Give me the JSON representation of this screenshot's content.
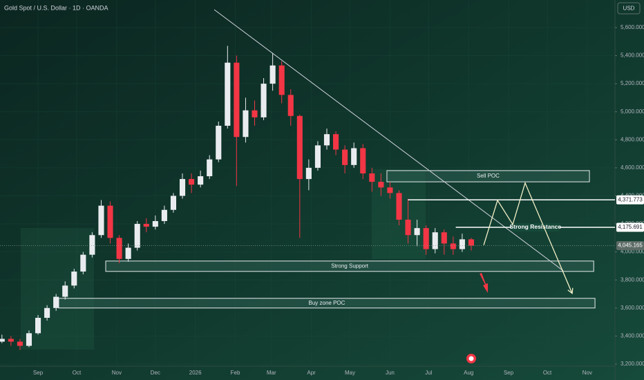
{
  "chart_data": {
    "type": "candlestick",
    "title": "Gold Spot / U.S. Dollar · 1D · OANDA",
    "currency": "USD",
    "up_color": "#e9ecef",
    "down_color": "#f23645",
    "x": [
      -28,
      -21,
      -14,
      -7,
      0,
      7,
      14,
      21,
      28,
      35,
      42,
      49,
      56,
      63,
      70,
      77,
      84,
      91,
      98,
      105,
      112,
      119,
      126,
      133,
      140,
      147,
      154,
      161,
      168,
      175,
      182,
      189,
      196,
      203,
      210,
      217,
      224,
      231,
      238,
      245,
      252,
      259,
      266,
      273,
      280,
      287,
      294,
      301,
      308,
      315,
      322,
      329,
      336
    ],
    "open": [
      3360,
      3380,
      3360,
      3330,
      3420,
      3530,
      3600,
      3680,
      3760,
      3860,
      3980,
      4120,
      4330,
      4100,
      3950,
      4030,
      4200,
      4180,
      4220,
      4300,
      4400,
      4520,
      4480,
      4540,
      4660,
      4900,
      5350,
      4820,
      5010,
      4960,
      5200,
      5330,
      5120,
      4970,
      4520,
      4600,
      4760,
      4840,
      4730,
      4620,
      4740,
      4560,
      4500,
      4460,
      4420,
      4230,
      4120,
      4170,
      4020,
      4140,
      4060,
      4020,
      4090
    ],
    "high": [
      3410,
      3400,
      3380,
      3440,
      3550,
      3620,
      3700,
      3790,
      3880,
      4000,
      4140,
      4370,
      4360,
      4120,
      4060,
      4220,
      4240,
      4260,
      4330,
      4420,
      4560,
      4560,
      4580,
      4690,
      4930,
      5470,
      5400,
      5100,
      5080,
      5240,
      5420,
      5360,
      5160,
      4980,
      4660,
      4790,
      4880,
      4860,
      4760,
      4780,
      4770,
      4600,
      4560,
      4500,
      4440,
      4380,
      4230,
      4190,
      4170,
      4160,
      4110,
      4130,
      4100
    ],
    "low": [
      3350,
      3330,
      3300,
      3320,
      3410,
      3510,
      3580,
      3660,
      3740,
      3840,
      3960,
      4100,
      4060,
      3920,
      3930,
      4010,
      4140,
      4160,
      4200,
      4280,
      4380,
      4420,
      4460,
      4520,
      4640,
      4880,
      4470,
      4780,
      4900,
      4940,
      5150,
      5060,
      4900,
      4100,
      4440,
      4580,
      4730,
      4690,
      4560,
      4600,
      4520,
      4430,
      4400,
      4380,
      4190,
      4060,
      4040,
      3980,
      3990,
      3980,
      3980,
      4000,
      4010
    ],
    "close": [
      3380,
      3360,
      3330,
      3420,
      3530,
      3600,
      3680,
      3760,
      3860,
      3980,
      4120,
      4330,
      4100,
      3950,
      4030,
      4200,
      4180,
      4220,
      4300,
      4400,
      4520,
      4480,
      4540,
      4660,
      4900,
      5350,
      4820,
      5010,
      4960,
      5200,
      5330,
      5120,
      4970,
      4520,
      4600,
      4760,
      4840,
      4730,
      4620,
      4740,
      4560,
      4500,
      4460,
      4420,
      4230,
      4120,
      4170,
      4020,
      4140,
      4060,
      4020,
      4090,
      4045.165
    ],
    "xlim": [
      -29.5,
      447.5
    ],
    "ylim": [
      3185,
      5797
    ],
    "xticks": [
      {
        "value": 0,
        "label": "Sep"
      },
      {
        "value": 30,
        "label": "Oct"
      },
      {
        "value": 61,
        "label": "Nov"
      },
      {
        "value": 91,
        "label": "Dec"
      },
      {
        "value": 122,
        "label": "2026"
      },
      {
        "value": 153,
        "label": "Feb"
      },
      {
        "value": 181,
        "label": "Mar"
      },
      {
        "value": 212,
        "label": "Apr"
      },
      {
        "value": 242,
        "label": "May"
      },
      {
        "value": 273,
        "label": "Jun"
      },
      {
        "value": 303,
        "label": "Jul"
      },
      {
        "value": 334,
        "label": "Aug"
      },
      {
        "value": 365,
        "label": "Sep"
      },
      {
        "value": 395,
        "label": "Oct"
      },
      {
        "value": 426,
        "label": "Nov"
      }
    ],
    "yticks": [
      {
        "value": 3200,
        "label": "3,200.000"
      },
      {
        "value": 3400,
        "label": "3,400.000"
      },
      {
        "value": 3600,
        "label": "3,600.000"
      },
      {
        "value": 3800,
        "label": "3,800.000"
      },
      {
        "value": 4000,
        "label": "4,000.000"
      },
      {
        "value": 4200,
        "label": "4,200.000"
      },
      {
        "value": 4400,
        "label": "4,400.000"
      },
      {
        "value": 4600,
        "label": "4,600.000"
      },
      {
        "value": 4800,
        "label": "4,800.000"
      },
      {
        "value": 5000,
        "label": "5,000.000"
      },
      {
        "value": 5200,
        "label": "5,200.000"
      },
      {
        "value": 5400,
        "label": "5,400.000"
      },
      {
        "value": 5600,
        "label": "5,600.000"
      }
    ],
    "trendline": {
      "x": [
        136.7,
        407.3
      ],
      "y": [
        5728,
        3866
      ]
    },
    "projection": {
      "x": [
        345.7,
        356.4,
        368.2,
        377.8,
        414.3
      ],
      "y": [
        4049,
        4368,
        4196,
        4492,
        3704
      ]
    },
    "zones": [
      {
        "text": "Sell POC",
        "x0": 270.6,
        "x1": 427.7,
        "top": 4580,
        "bottom": 4500
      },
      {
        "text": "Strong Support",
        "x0": 52.5,
        "x1": 431,
        "top": 3935,
        "bottom": 3861
      },
      {
        "text": "Buy zone POC",
        "x0": 16,
        "x1": 432,
        "top": 3669,
        "bottom": 3600
      }
    ],
    "levels": [
      {
        "value": 4371.773,
        "label": "4,371.773",
        "x0": 287
      },
      {
        "value": 4175.691,
        "label": "4,175.691",
        "x0": 324,
        "text": "Strong Resistance"
      }
    ],
    "last_price": {
      "value": 4045.165,
      "label": "4,045.165"
    }
  }
}
